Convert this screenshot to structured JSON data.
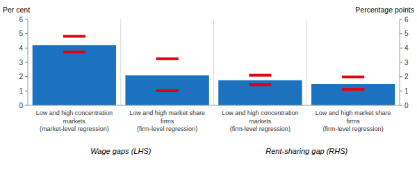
{
  "chart_data": {
    "type": "bar",
    "categories": [
      "Low and high concentration\nmarkets\n(market-level regression)",
      "Low and high market share\nfirms\n(firm-level regression)",
      "Low and high concentration\nmarkets\n(firm-level regression)",
      "Low and high market share\nfirms\n(firm-level regression)"
    ],
    "values": [
      4.2,
      2.1,
      1.75,
      1.5
    ],
    "color": "#1c72be",
    "error_bars": {
      "upper": [
        4.82,
        3.25,
        2.1,
        1.98
      ],
      "lower": [
        3.72,
        1.02,
        1.44,
        1.12
      ],
      "color": "#e3000f"
    },
    "category_groups": [
      "Wage gaps (LHS)",
      "Wage gaps (LHS)",
      "Rent-sharing gap (RHS)",
      "Rent-sharing gap (RHS)"
    ],
    "ylabel": "Per cent",
    "y2label": "Percentage points",
    "ylim": [
      0,
      6
    ],
    "yticks": [
      0,
      1,
      2,
      3,
      4,
      5,
      6
    ],
    "y2lim": [
      0,
      6
    ],
    "y2ticks": [
      0,
      1,
      2,
      3,
      4,
      5,
      6
    ],
    "grid": false
  }
}
